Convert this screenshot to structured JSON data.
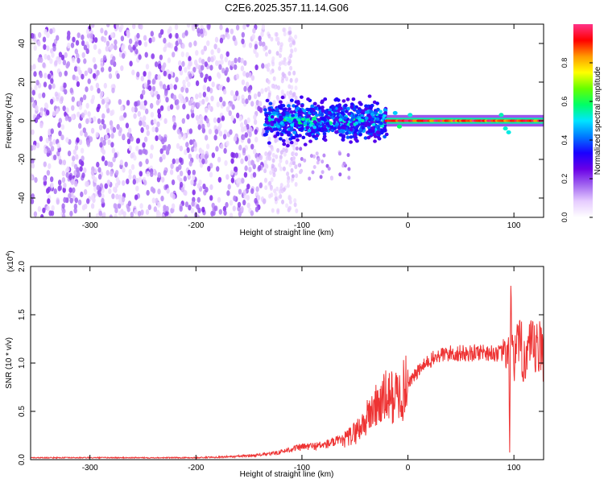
{
  "chart_data": [
    {
      "type": "heatmap",
      "title": "C2E6.2025.357.11.14.G06",
      "xlabel": "Height of straight line (km)",
      "ylabel": "Frequency (Hz)",
      "xlim": [
        -356,
        128
      ],
      "ylim": [
        -50,
        50
      ],
      "x_ticks": [
        -300,
        -200,
        -100,
        0,
        100
      ],
      "y_ticks": [
        -40,
        -20,
        0,
        20,
        40
      ],
      "colorbar": {
        "label": "Normalized spectral amplitude",
        "range": [
          0,
          1
        ],
        "ticks": [
          "0.0",
          "0.2",
          "0.4",
          "0.6",
          "0.8"
        ],
        "colormap": [
          "#ffffff",
          "#e6ccff",
          "#a266f0",
          "#6a00e6",
          "#1a00ff",
          "#0077ff",
          "#00e5ff",
          "#00ff66",
          "#66ff00",
          "#ffff00",
          "#ff9900",
          "#ff0000",
          "#ff3388"
        ]
      },
      "regions": [
        {
          "x_range": [
            -356,
            -135
          ],
          "freq_range": [
            -50,
            50
          ],
          "amplitude": "low, scattered noise"
        },
        {
          "x_range": [
            -135,
            -20
          ],
          "freq_range": [
            -15,
            12
          ],
          "amplitude": "moderate, broadened signal"
        },
        {
          "x_range": [
            -20,
            128
          ],
          "freq_range": [
            -2,
            2
          ],
          "amplitude": "high, narrow line at 0 Hz"
        }
      ]
    },
    {
      "type": "line",
      "xlabel": "Height of straight line (km)",
      "ylabel": "SNR (10 * v/v)",
      "y_multiplier_label": "(x10",
      "y_multiplier_exp": "4",
      "xlim": [
        -356,
        128
      ],
      "ylim": [
        0,
        2.0
      ],
      "x_ticks": [
        -300,
        -200,
        -100,
        0,
        100
      ],
      "y_ticks": [
        "0.0",
        "0.5",
        "1.0",
        "1.5",
        "2.0"
      ],
      "color": "#ee3333",
      "series": [
        {
          "x": [
            -356,
            -300,
            -250,
            -200,
            -170,
            -150,
            -130,
            -120,
            -110,
            -100,
            -90,
            -80,
            -70,
            -60,
            -50,
            -40,
            -35,
            -30,
            -25,
            -20,
            -15,
            -10,
            -5,
            0,
            5,
            10,
            20,
            30,
            40,
            50,
            60,
            70,
            80,
            90,
            93,
            95,
            96,
            97,
            98,
            100,
            105,
            110,
            120,
            128
          ],
          "y": [
            0.02,
            0.02,
            0.02,
            0.02,
            0.03,
            0.04,
            0.06,
            0.08,
            0.11,
            0.13,
            0.14,
            0.15,
            0.18,
            0.2,
            0.28,
            0.4,
            0.5,
            0.55,
            0.6,
            0.65,
            0.65,
            0.66,
            0.7,
            0.8,
            0.85,
            0.92,
            1.02,
            1.08,
            1.1,
            1.1,
            1.1,
            1.12,
            1.1,
            1.1,
            1.05,
            1.2,
            0.05,
            1.7,
            1.3,
            1.1,
            1.12,
            1.1,
            1.12,
            1.12
          ]
        }
      ]
    }
  ]
}
